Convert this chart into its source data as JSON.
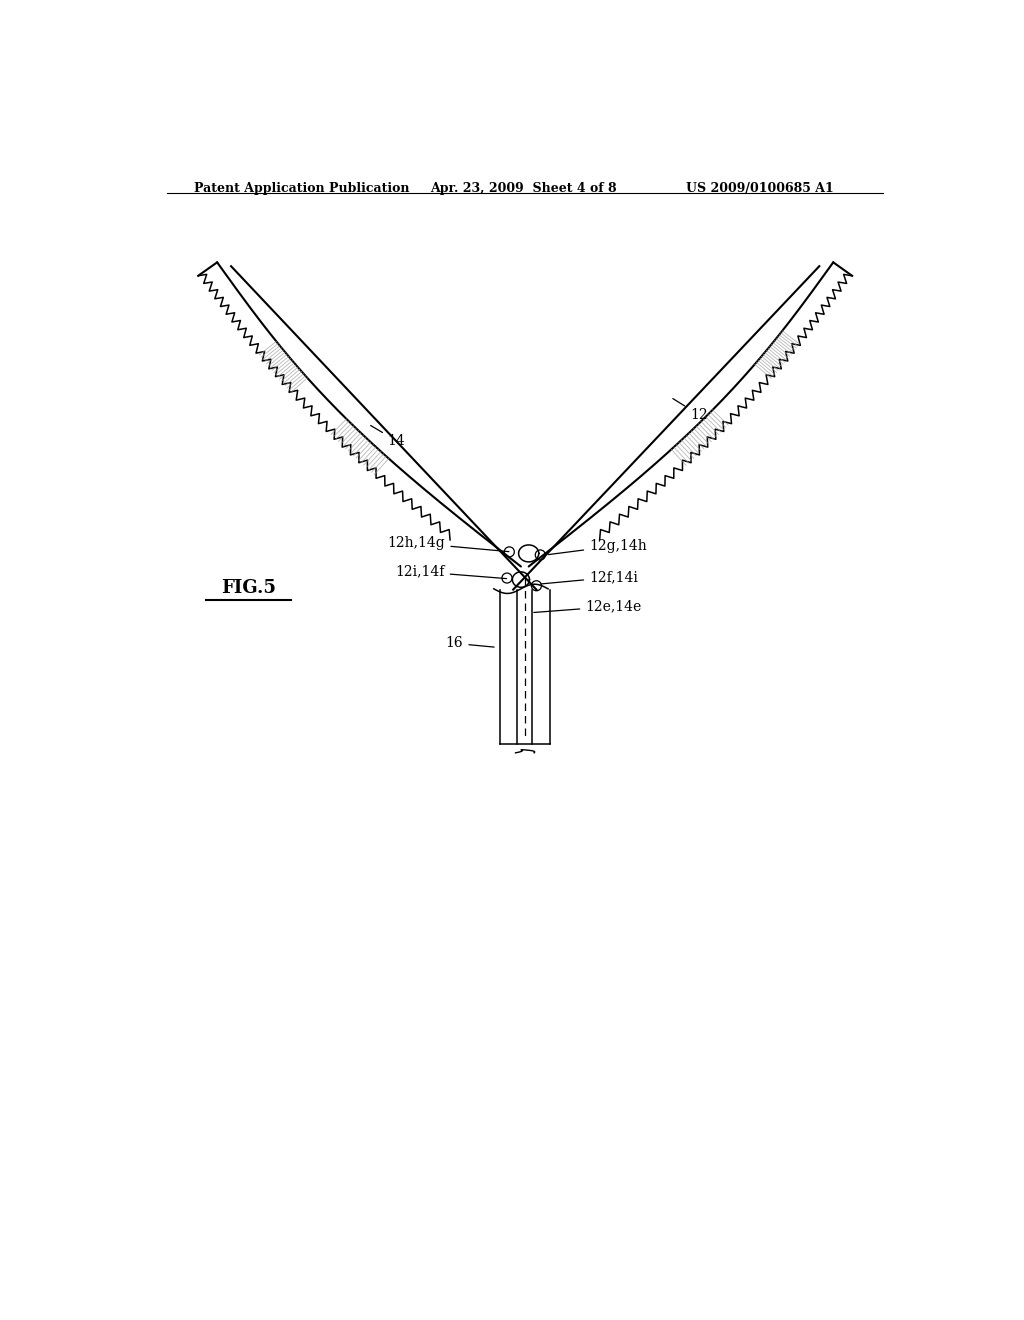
{
  "bg_color": "#ffffff",
  "line_color": "#000000",
  "gray_color": "#888888",
  "header_left": "Patent Application Publication",
  "header_mid": "Apr. 23, 2009  Sheet 4 of 8",
  "header_right": "US 2009/0100685 A1",
  "fig_label": "FIG.5",
  "label_12": "12",
  "label_14": "14",
  "label_12g14h": "12g,14h",
  "label_12h14g": "12h,14g",
  "label_12f14i": "12f,14i",
  "label_12i14f": "12i,14f",
  "label_12e14e": "12e,14e",
  "label_16": "16"
}
